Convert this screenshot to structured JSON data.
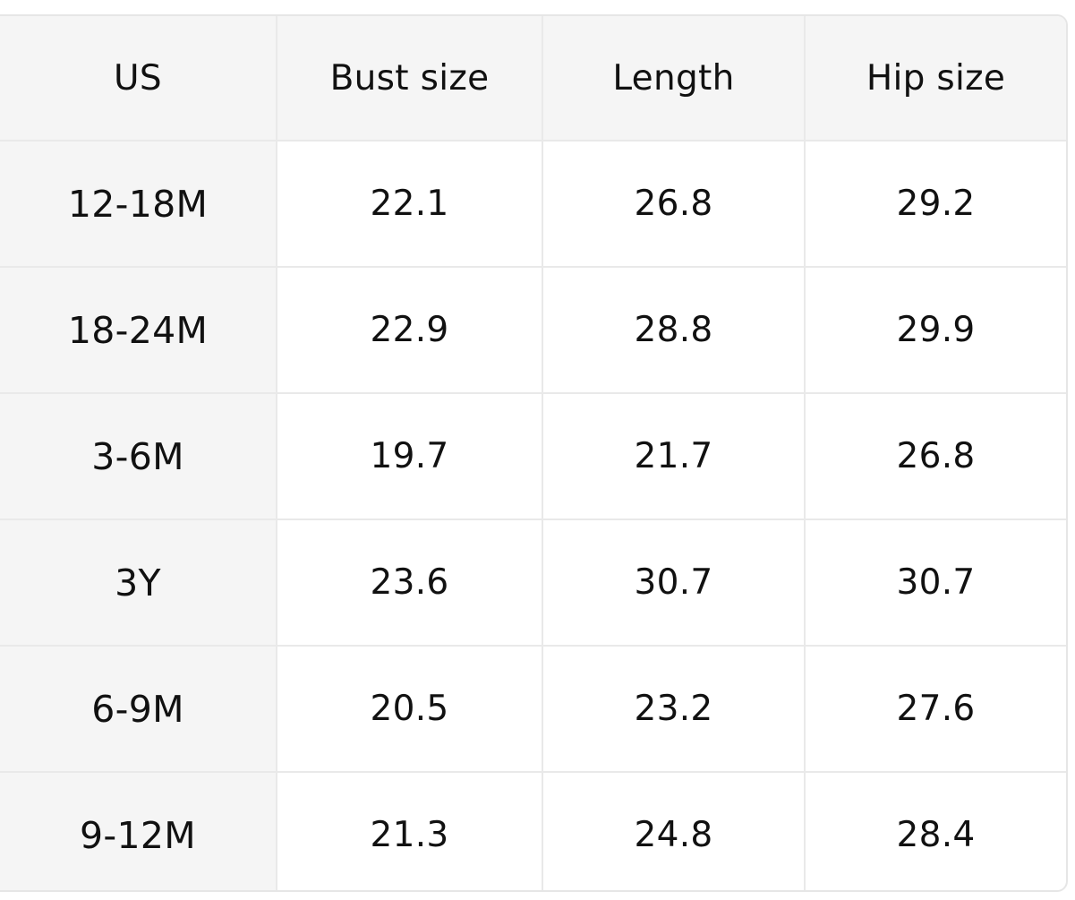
{
  "table": {
    "headers": [
      "US",
      "Bust size",
      "Length",
      "Hip size"
    ],
    "rows": [
      {
        "size": "12-18M",
        "bust": "22.1",
        "length": "26.8",
        "hip": "29.2"
      },
      {
        "size": "18-24M",
        "bust": "22.9",
        "length": "28.8",
        "hip": "29.9"
      },
      {
        "size": "3-6M",
        "bust": "19.7",
        "length": "21.7",
        "hip": "26.8"
      },
      {
        "size": "3Y",
        "bust": "23.6",
        "length": "30.7",
        "hip": "30.7"
      },
      {
        "size": "6-9M",
        "bust": "20.5",
        "length": "23.2",
        "hip": "27.6"
      },
      {
        "size": "9-12M",
        "bust": "21.3",
        "length": "24.8",
        "hip": "28.4"
      }
    ]
  },
  "colors": {
    "header_background": "#f5f5f5",
    "body_background": "#ffffff",
    "border": "#e9e9e9",
    "text": "#111111"
  }
}
